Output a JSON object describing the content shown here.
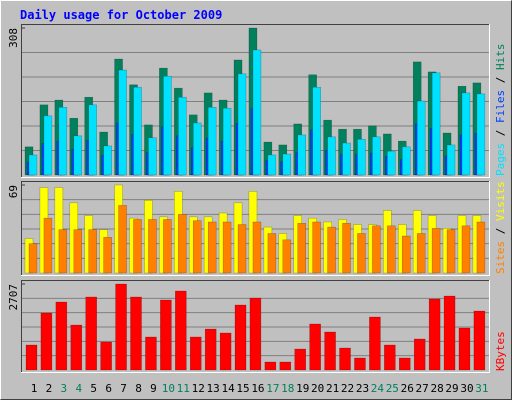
{
  "chart_data": [
    {
      "type": "bar",
      "title": "Daily usage for October 2009",
      "ylim": [
        0,
        308
      ],
      "yticks": [
        308
      ],
      "grid": true,
      "legend_separator": " / ",
      "series": [
        {
          "name": "Hits",
          "color": "#00805c",
          "values": [
            59,
            147,
            157,
            119,
            163,
            90,
            243,
            189,
            105,
            224,
            182,
            126,
            172,
            157,
            241,
            308,
            69,
            63,
            107,
            210,
            115,
            96,
            96,
            103,
            86,
            71,
            237,
            216,
            88,
            186,
            193
          ]
        },
        {
          "name": "Files",
          "color": "#0040ff",
          "values": [
            27,
            66,
            71,
            54,
            73,
            41,
            109,
            85,
            47,
            101,
            82,
            57,
            77,
            71,
            108,
            139,
            31,
            28,
            48,
            95,
            52,
            43,
            43,
            46,
            39,
            32,
            107,
            97,
            40,
            84,
            87
          ]
        },
        {
          "name": "Pages",
          "color": "#00e0ff",
          "values": [
            42,
            124,
            142,
            82,
            147,
            61,
            220,
            184,
            78,
            207,
            163,
            109,
            142,
            140,
            212,
            262,
            42,
            44,
            84,
            184,
            80,
            67,
            75,
            80,
            50,
            59,
            155,
            214,
            63,
            172,
            170
          ]
        }
      ]
    },
    {
      "type": "bar",
      "ylim": [
        0,
        69
      ],
      "yticks": [
        69
      ],
      "grid": true,
      "legend_separator": " / ",
      "series": [
        {
          "name": "Visits",
          "color": "#ffff00",
          "values": [
            27,
            67,
            67,
            55,
            45,
            34,
            69,
            43,
            57,
            44,
            64,
            44,
            44,
            47,
            55,
            64,
            36,
            31,
            45,
            43,
            40,
            42,
            38,
            38,
            49,
            38,
            49,
            45,
            35,
            45,
            45
          ]
        },
        {
          "name": "Sites",
          "color": "#ff8000",
          "values": [
            23,
            43,
            34,
            34,
            34,
            28,
            53,
            42,
            42,
            42,
            46,
            41,
            40,
            40,
            38,
            40,
            31,
            26,
            39,
            40,
            36,
            39,
            31,
            37,
            37,
            29,
            31,
            35,
            34,
            37,
            40
          ]
        }
      ]
    },
    {
      "type": "bar",
      "ylim": [
        0,
        2707
      ],
      "yticks": [
        2707
      ],
      "grid": true,
      "series": [
        {
          "name": "KBytes",
          "color": "#ff0000",
          "values": [
            787,
            1794,
            2140,
            1416,
            2298,
            881,
            2707,
            2298,
            1039,
            2203,
            2487,
            1039,
            1290,
            1165,
            2046,
            2266,
            252,
            252,
            661,
            1448,
            1196,
            692,
            378,
            1668,
            787,
            378,
            976,
            2235,
            2329,
            1322,
            1857
          ]
        }
      ],
      "categories": [
        "1",
        "2",
        "3",
        "4",
        "5",
        "6",
        "7",
        "8",
        "9",
        "10",
        "11",
        "12",
        "13",
        "14",
        "15",
        "16",
        "17",
        "18",
        "19",
        "20",
        "21",
        "22",
        "23",
        "24",
        "25",
        "26",
        "27",
        "28",
        "29",
        "30",
        "31"
      ],
      "category_colors": [
        "#000000",
        "#000000",
        "#00805c",
        "#00805c",
        "#000000",
        "#000000",
        "#000000",
        "#000000",
        "#000000",
        "#00805c",
        "#00805c",
        "#000000",
        "#000000",
        "#000000",
        "#000000",
        "#000000",
        "#00805c",
        "#00805c",
        "#000000",
        "#000000",
        "#000000",
        "#000000",
        "#000000",
        "#00805c",
        "#00805c",
        "#000000",
        "#000000",
        "#000000",
        "#000000",
        "#000000",
        "#00805c"
      ]
    }
  ]
}
